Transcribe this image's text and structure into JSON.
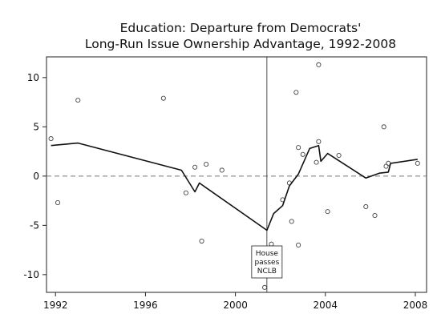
{
  "chart_data": {
    "type": "scatter",
    "title": "Education: Departure from Democrats'",
    "subtitle": "Long-Run Issue Ownership Advantage, 1992-2008",
    "xlabel": "",
    "ylabel": "",
    "xlim": [
      1991.6,
      2008.5
    ],
    "ylim": [
      -11.8,
      12.1
    ],
    "x_ticks": [
      1992,
      1996,
      2000,
      2004,
      2008
    ],
    "y_ticks": [
      10,
      5,
      0,
      -5,
      -10
    ],
    "grid": false,
    "reference_line_y": 0,
    "event_line_x": 2001.4,
    "annotation": {
      "lines": [
        "House",
        "passes",
        "NCLB"
      ],
      "x": 2001.4
    },
    "scatter_points": [
      {
        "x": 1991.8,
        "y": 3.8
      },
      {
        "x": 1992.1,
        "y": -2.7
      },
      {
        "x": 1993.0,
        "y": 7.7
      },
      {
        "x": 1996.8,
        "y": 7.9
      },
      {
        "x": 1997.8,
        "y": -1.7
      },
      {
        "x": 1998.2,
        "y": 0.9
      },
      {
        "x": 1998.5,
        "y": -6.6
      },
      {
        "x": 1998.7,
        "y": 1.2
      },
      {
        "x": 1999.4,
        "y": 0.6
      },
      {
        "x": 2001.6,
        "y": -6.9
      },
      {
        "x": 2002.1,
        "y": -2.4
      },
      {
        "x": 2002.5,
        "y": -4.6
      },
      {
        "x": 2002.4,
        "y": -0.7
      },
      {
        "x": 2002.7,
        "y": 8.5
      },
      {
        "x": 2002.8,
        "y": 2.9
      },
      {
        "x": 2002.8,
        "y": -7.0
      },
      {
        "x": 2003.0,
        "y": 2.2
      },
      {
        "x": 2003.6,
        "y": 1.4
      },
      {
        "x": 2003.7,
        "y": 3.5
      },
      {
        "x": 2003.7,
        "y": 11.3
      },
      {
        "x": 2004.1,
        "y": -3.6
      },
      {
        "x": 2004.6,
        "y": 2.1
      },
      {
        "x": 2001.3,
        "y": -11.3
      },
      {
        "x": 2005.8,
        "y": -3.1
      },
      {
        "x": 2006.2,
        "y": -4.0
      },
      {
        "x": 2006.6,
        "y": 5.0
      },
      {
        "x": 2006.8,
        "y": 1.3
      },
      {
        "x": 2006.7,
        "y": 1.0
      },
      {
        "x": 2008.1,
        "y": 1.3
      }
    ],
    "trend_line": [
      {
        "x": 1991.8,
        "y": 3.1
      },
      {
        "x": 1993.0,
        "y": 3.35
      },
      {
        "x": 1997.6,
        "y": 0.6
      },
      {
        "x": 1998.2,
        "y": -1.6
      },
      {
        "x": 1998.4,
        "y": -0.7
      },
      {
        "x": 2001.4,
        "y": -5.5
      },
      {
        "x": 2001.7,
        "y": -3.8
      },
      {
        "x": 2002.1,
        "y": -3.0
      },
      {
        "x": 2002.4,
        "y": -1.0
      },
      {
        "x": 2002.8,
        "y": 0.2
      },
      {
        "x": 2003.3,
        "y": 2.8
      },
      {
        "x": 2003.7,
        "y": 3.1
      },
      {
        "x": 2003.8,
        "y": 1.5
      },
      {
        "x": 2004.1,
        "y": 2.3
      },
      {
        "x": 2005.8,
        "y": -0.2
      },
      {
        "x": 2006.4,
        "y": 0.3
      },
      {
        "x": 2006.8,
        "y": 0.4
      },
      {
        "x": 2006.9,
        "y": 1.3
      },
      {
        "x": 2008.1,
        "y": 1.7
      }
    ],
    "colors": {
      "line": "#111111",
      "marker": "#444444",
      "axis": "#222222",
      "reference": "#777777"
    }
  }
}
